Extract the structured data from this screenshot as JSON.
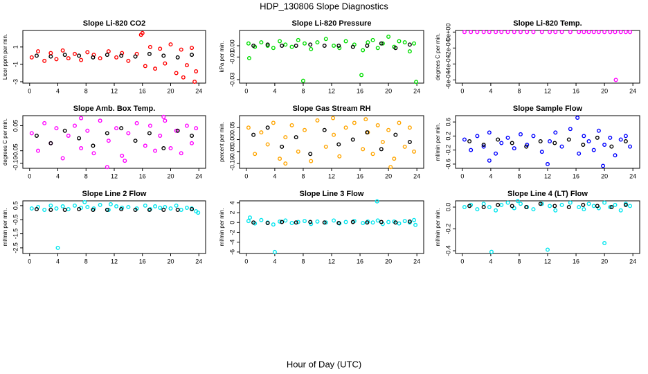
{
  "title": "HDP_130806  Slope Diagnostics",
  "xlabel": "Hour of Day (UTC)",
  "chart_data": [
    {
      "type": "scatter",
      "title": "Slope Li-820 CO2",
      "ylabel": "Licor ppm per min.",
      "xlim": [
        -0.96,
        24.96
      ],
      "xticks": [
        0,
        4,
        8,
        12,
        16,
        20,
        24
      ],
      "ylim": [
        -3.16,
        2.9
      ],
      "yticks": [
        -3,
        -1,
        1
      ],
      "series": [
        {
          "color": "#ff0000",
          "x": [
            0.3,
            1.2,
            2.1,
            3.0,
            3.8,
            4.7,
            5.5,
            6.4,
            7.3,
            8.2,
            9.1,
            10.0,
            11.2,
            12.3,
            13.1,
            14.0,
            15.2,
            16.4,
            17.1,
            17.8,
            18.5,
            19.2,
            20.0,
            20.8,
            21.5,
            22.3,
            23.0,
            23.6,
            15.8,
            16.0,
            21.8,
            23.4
          ],
          "values": [
            -0.2,
            0.5,
            -0.6,
            0.3,
            -0.4,
            0.6,
            -0.3,
            0.2,
            -0.5,
            0.4,
            0.1,
            -0.3,
            0.5,
            -0.2,
            0.3,
            -0.6,
            0.2,
            -1.2,
            1.0,
            -1.5,
            0.8,
            -0.9,
            1.3,
            -2.0,
            0.7,
            -1.1,
            0.9,
            -1.8,
            2.4,
            2.6,
            -2.5,
            -3.0
          ]
        },
        {
          "color": "#000000",
          "x": [
            1,
            3,
            5,
            7,
            9,
            11,
            13,
            15,
            17,
            19,
            21,
            23
          ],
          "values": [
            0,
            -0.1,
            0.1,
            0,
            -0.2,
            0.1,
            0,
            -0.1,
            0.2,
            0,
            -0.2,
            0.1
          ]
        }
      ]
    },
    {
      "type": "scatter",
      "title": "Slope Li-820 Pressure",
      "ylabel": "kPa per min.",
      "xlim": [
        -0.96,
        24.96
      ],
      "xticks": [
        0,
        4,
        8,
        12,
        16,
        20,
        24
      ],
      "ylim": [
        -0.0331,
        0.0135
      ],
      "yticks": [
        {
          "value": -0.03,
          "label": "-0.03"
        },
        {
          "value": -0.01,
          "label": "-0.01"
        },
        {
          "value": 0,
          "label": "0.00"
        }
      ],
      "series": [
        {
          "color": "#00dd00",
          "x": [
            0.3,
            1.2,
            2.1,
            3.0,
            3.8,
            4.7,
            5.5,
            6.4,
            7.3,
            8.2,
            9.1,
            10.0,
            11.2,
            12.3,
            13.1,
            14.0,
            15.2,
            16.4,
            17.1,
            17.8,
            18.5,
            19.2,
            20.0,
            20.8,
            21.5,
            22.3,
            23.0,
            23.6,
            0.4,
            8.0,
            16.2,
            23.9
          ],
          "values": [
            0.002,
            -0.001,
            0.003,
            0,
            -0.002,
            0.004,
            0.001,
            -0.001,
            0.005,
            0.002,
            -0.003,
            0.003,
            0.006,
            0,
            -0.002,
            0.004,
            0.001,
            -0.004,
            0.003,
            0.005,
            -0.002,
            0.002,
            0.008,
            -0.001,
            0.004,
            0.003,
            -0.005,
            0.002,
            -0.011,
            -0.031,
            -0.026,
            -0.032
          ]
        },
        {
          "color": "#000000",
          "x": [
            1,
            3,
            5,
            7,
            9,
            11,
            13,
            15,
            17,
            19,
            21,
            23
          ],
          "values": [
            0,
            0.001,
            0,
            0,
            0.001,
            0,
            0,
            -0.001,
            0,
            0.002,
            -0.002,
            0.001
          ]
        }
      ]
    },
    {
      "type": "scatter",
      "title": "Slope Li-820 Temp.",
      "ylabel": "degrees C per min.",
      "xlim": [
        -0.96,
        24.96
      ],
      "xticks": [
        0,
        4,
        8,
        12,
        16,
        20,
        24
      ],
      "ylim": [
        -0.00064,
        2e-05
      ],
      "yticks": [
        {
          "value": -0.0006,
          "label": "-6e-04"
        },
        {
          "value": -0.0004,
          "label": "-4e-04"
        },
        {
          "value": -0.0002,
          "label": "-2e-04"
        },
        {
          "value": 0,
          "label": "0e+00"
        }
      ],
      "series": [
        {
          "color": "#ff00ff",
          "x": [
            0.3,
            1.2,
            2.1,
            3.0,
            3.8,
            4.7,
            5.5,
            6.4,
            7.3,
            8.2,
            9.1,
            10.0,
            11.2,
            12.3,
            13.1,
            14.0,
            15.2,
            16.4,
            17.1,
            17.8,
            18.5,
            19.2,
            20.0,
            20.8,
            21.5,
            22.3,
            23.0,
            23.6,
            21.6
          ],
          "values": [
            0,
            0,
            0,
            0,
            0,
            0,
            0,
            0,
            0,
            0,
            0,
            0,
            0,
            0,
            0,
            0,
            0,
            0,
            0,
            0,
            0,
            0,
            0,
            0,
            0,
            0,
            0,
            0,
            -0.0006
          ]
        }
      ]
    },
    {
      "type": "scatter",
      "title": "Slope Amb. Box Temp.",
      "ylabel": "degrees C per min.",
      "xlim": [
        -0.96,
        24.96
      ],
      "xticks": [
        0,
        4,
        8,
        12,
        16,
        20,
        24
      ],
      "ylim": [
        -0.12,
        0.09
      ],
      "yticks": [
        {
          "value": -0.1,
          "label": "-0.10"
        },
        -0.05,
        0.05
      ],
      "series": [
        {
          "color": "#ff00ff",
          "x": [
            0.3,
            1.2,
            2.1,
            3.0,
            3.8,
            4.7,
            5.5,
            6.4,
            7.3,
            8.2,
            9.1,
            10.0,
            11.2,
            12.3,
            13.1,
            14.0,
            15.2,
            16.4,
            17.1,
            17.8,
            18.5,
            19.2,
            20.0,
            20.8,
            21.5,
            22.3,
            23.0,
            23.6,
            11.0,
            7.3,
            13.5,
            19.0
          ],
          "values": [
            0.02,
            -0.05,
            0.06,
            -0.02,
            0.04,
            -0.08,
            0.01,
            0.05,
            -0.04,
            0.03,
            -0.06,
            0.07,
            -0.01,
            0.04,
            -0.07,
            0.02,
            0.06,
            -0.03,
            0.05,
            -0.05,
            0.01,
            0.07,
            -0.04,
            0.03,
            -0.06,
            0.05,
            -0.02,
            0.04,
            -0.115,
            0.08,
            -0.09,
            0.085
          ]
        },
        {
          "color": "#000000",
          "x": [
            1,
            3,
            5,
            7,
            9,
            11,
            13,
            15,
            17,
            19,
            21,
            23
          ],
          "values": [
            0.01,
            -0.02,
            0.03,
            0,
            -0.03,
            0.02,
            0.04,
            -0.01,
            0.02,
            -0.04,
            0.03,
            0.01
          ]
        }
      ]
    },
    {
      "type": "scatter",
      "title": "Slope Gas Stream RH",
      "ylabel": "percent per min.",
      "xlim": [
        -0.96,
        24.96
      ],
      "xticks": [
        0,
        4,
        8,
        12,
        16,
        20,
        24
      ],
      "ylim": [
        -0.12,
        0.1
      ],
      "yticks": [
        {
          "value": -0.1,
          "label": "-0.10"
        },
        -0.05,
        {
          "value": 0,
          "label": "0.00"
        },
        0.05
      ],
      "series": [
        {
          "color": "#ffa500",
          "x": [
            0.3,
            1.2,
            2.1,
            3.0,
            3.8,
            4.7,
            5.5,
            6.4,
            7.3,
            8.2,
            9.1,
            10.0,
            11.2,
            12.3,
            13.1,
            14.0,
            15.2,
            16.4,
            17.1,
            17.8,
            18.5,
            19.2,
            20.0,
            20.8,
            21.5,
            22.3,
            23.0,
            23.6,
            12.2,
            20.3,
            5.5,
            16.8
          ],
          "values": [
            0.05,
            -0.06,
            0.03,
            -0.02,
            0.07,
            -0.08,
            0.01,
            0.06,
            -0.05,
            0.04,
            -0.09,
            0.08,
            -0.03,
            0.02,
            -0.07,
            0.05,
            0.07,
            -0.04,
            0.03,
            -0.06,
            0.06,
            -0.01,
            0.04,
            -0.08,
            0.07,
            -0.03,
            0.05,
            -0.05,
            0.09,
            -0.115,
            -0.1,
            0.085
          ]
        },
        {
          "color": "#000000",
          "x": [
            1,
            3,
            5,
            7,
            9,
            11,
            13,
            15,
            17,
            19,
            21,
            23
          ],
          "values": [
            0.02,
            0.05,
            -0.03,
            0.01,
            -0.06,
            0.04,
            -0.02,
            0,
            0.03,
            -0.04,
            0.02,
            -0.01
          ]
        }
      ]
    },
    {
      "type": "scatter",
      "title": "Slope Sample Flow",
      "ylabel": "ml/min per min.",
      "xlim": [
        -0.96,
        24.96
      ],
      "xticks": [
        0,
        4,
        8,
        12,
        16,
        20,
        24
      ],
      "ylim": [
        -0.72,
        0.78
      ],
      "yticks": [
        -0.6,
        -0.2,
        0.2,
        0.6
      ],
      "series": [
        {
          "color": "#0000ff",
          "x": [
            0.3,
            1.2,
            2.1,
            3.0,
            3.8,
            4.7,
            5.5,
            6.4,
            7.3,
            8.2,
            9.1,
            10.0,
            11.2,
            12.3,
            13.1,
            14.0,
            15.2,
            16.4,
            17.1,
            17.8,
            18.5,
            19.2,
            20.0,
            20.8,
            21.5,
            22.3,
            23.0,
            23.6,
            16.2,
            12.0,
            19.8,
            3.8
          ],
          "values": [
            0.1,
            -0.2,
            0.2,
            -0.1,
            0.3,
            -0.3,
            0,
            0.15,
            -0.15,
            0.25,
            -0.05,
            0.2,
            -0.25,
            0.05,
            0.3,
            -0.1,
            0.4,
            -0.3,
            0.2,
            0.05,
            -0.2,
            0.35,
            -0.05,
            0.15,
            -0.35,
            0.1,
            0.2,
            -0.1,
            0.72,
            -0.6,
            -0.65,
            -0.5
          ]
        },
        {
          "color": "#000000",
          "x": [
            1,
            3,
            5,
            7,
            9,
            11,
            13,
            15,
            17,
            19,
            21,
            23
          ],
          "values": [
            0.05,
            -0.05,
            0.1,
            0,
            -0.1,
            0.05,
            0,
            0.1,
            -0.05,
            0.15,
            -0.1,
            0.05
          ]
        }
      ]
    },
    {
      "type": "scatter",
      "title": "Slope Line 2 Flow",
      "ylabel": "ml/min per min.",
      "xlim": [
        -0.96,
        24.96
      ],
      "xticks": [
        0,
        4,
        8,
        12,
        16,
        20,
        24
      ],
      "ylim": [
        -2.9,
        0.84
      ],
      "yticks": [
        -2.5,
        -1.5,
        -0.5,
        0.5
      ],
      "series": [
        {
          "color": "#00e5ee",
          "x": [
            0.3,
            1.2,
            2.1,
            3.0,
            3.8,
            4.7,
            5.5,
            6.4,
            7.3,
            8.2,
            9.1,
            10.0,
            11.2,
            12.3,
            13.1,
            14.0,
            15.2,
            16.4,
            17.1,
            17.8,
            18.5,
            19.2,
            20.0,
            20.8,
            21.5,
            22.3,
            23.0,
            23.6,
            4.0,
            7.8,
            11.5,
            23.9
          ],
          "values": [
            0.3,
            0.4,
            0.2,
            0.5,
            0.3,
            0.45,
            0.25,
            0.5,
            0.35,
            0.4,
            0.3,
            0.55,
            0.2,
            0.45,
            0.35,
            0.4,
            0.3,
            0.5,
            0.25,
            0.45,
            0.35,
            0.4,
            0.3,
            0.5,
            0.2,
            0.35,
            0.3,
            0.1,
            -2.5,
            0.75,
            0.6,
            0
          ]
        },
        {
          "color": "#000000",
          "x": [
            1,
            3,
            5,
            7,
            9,
            11,
            13,
            15,
            17,
            19,
            21,
            23
          ],
          "values": [
            0.25,
            0.2,
            0.2,
            0.25,
            0.2,
            0.2,
            0.25,
            0.2,
            0.2,
            0.2,
            0.2,
            0.25
          ]
        }
      ]
    },
    {
      "type": "scatter",
      "title": "Slope Line 3 Flow",
      "ylabel": "ml/min per min.",
      "xlim": [
        -0.96,
        24.96
      ],
      "xticks": [
        0,
        4,
        8,
        12,
        16,
        20,
        24
      ],
      "ylim": [
        -6.3,
        4.4
      ],
      "yticks": [
        -6,
        -4,
        -2,
        0,
        2,
        4
      ],
      "series": [
        {
          "color": "#00e5ee",
          "x": [
            0.3,
            1.2,
            2.1,
            3.0,
            3.8,
            4.7,
            5.5,
            6.4,
            7.3,
            8.2,
            9.1,
            10.0,
            11.2,
            12.3,
            13.1,
            14.0,
            15.2,
            16.4,
            17.1,
            17.8,
            18.5,
            19.2,
            20.0,
            20.8,
            21.5,
            22.3,
            23.0,
            23.6,
            18.4,
            4.0,
            0.5,
            23.8
          ],
          "values": [
            0.3,
            -0.2,
            0.5,
            0,
            -0.4,
            0.2,
            0.4,
            -0.1,
            0.1,
            0.3,
            -0.3,
            0.2,
            0,
            0.4,
            -0.2,
            0.1,
            0.3,
            -0.1,
            0.2,
            0,
            0.4,
            -0.3,
            0.1,
            0.2,
            -0.2,
            0.3,
            0,
            0.5,
            4.3,
            -6,
            1,
            -0.5
          ]
        },
        {
          "color": "#000000",
          "x": [
            1,
            3,
            5,
            7,
            9,
            11,
            13,
            15,
            17,
            19,
            21,
            23
          ],
          "values": [
            0,
            -0.1,
            0.1,
            0,
            0.1,
            0,
            -0.1,
            0.1,
            0,
            0.1,
            0,
            0.2
          ]
        }
      ]
    },
    {
      "type": "scatter",
      "title": "Slope Line 4 (LT) Flow",
      "ylabel": "ml/min per min.",
      "xlim": [
        -0.96,
        24.96
      ],
      "xticks": [
        0,
        4,
        8,
        12,
        16,
        20,
        24
      ],
      "ylim": [
        -0.425,
        0.057
      ],
      "yticks": [
        -0.4,
        -0.2,
        {
          "value": 0,
          "label": "0.0"
        }
      ],
      "series": [
        {
          "color": "#00e5ee",
          "x": [
            0.3,
            1.2,
            2.1,
            3.0,
            3.8,
            4.7,
            5.5,
            6.4,
            7.3,
            8.2,
            9.1,
            10.0,
            11.2,
            12.3,
            13.1,
            14.0,
            15.2,
            16.4,
            17.1,
            17.8,
            18.5,
            19.2,
            20.0,
            20.8,
            21.5,
            22.3,
            23.0,
            23.6,
            4.1,
            12.0,
            20.0,
            7.8
          ],
          "values": [
            0,
            0.02,
            -0.02,
            0.03,
            0,
            -0.03,
            0.02,
            0.04,
            -0.01,
            0.03,
            0,
            -0.02,
            0.03,
            0.01,
            -0.03,
            0.02,
            0.04,
            0,
            -0.02,
            0.03,
            0.01,
            -0.01,
            0.04,
            0,
            0.02,
            -0.03,
            0.03,
            0.01,
            -0.41,
            -0.39,
            -0.33,
            0.055
          ]
        },
        {
          "color": "#000000",
          "x": [
            1,
            3,
            5,
            7,
            9,
            11,
            13,
            15,
            17,
            19,
            21,
            23
          ],
          "values": [
            0.01,
            0,
            0.02,
            0.01,
            0,
            0.03,
            0.01,
            0,
            0.02,
            0.01,
            0,
            0.02
          ]
        }
      ]
    }
  ]
}
